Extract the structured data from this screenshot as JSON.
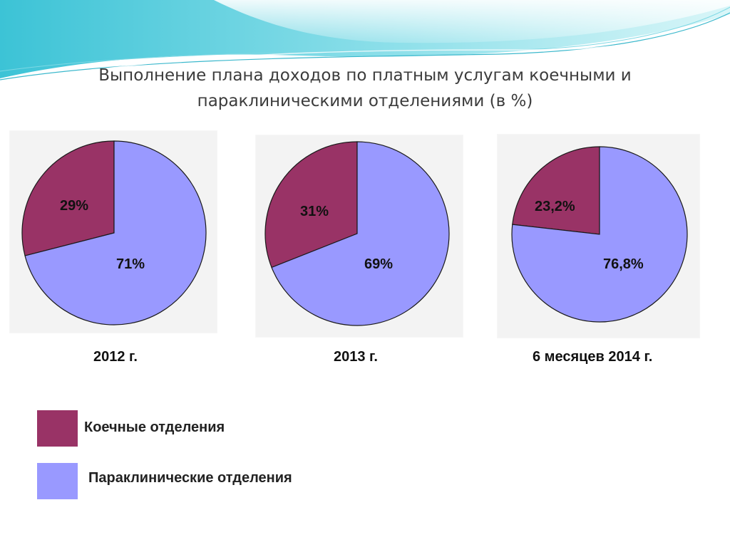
{
  "slide": {
    "title_line1": "Выполнение плана доходов по платным услугам коечными и",
    "title_line2": "параклиническими отделениями (в %)"
  },
  "colors": {
    "inpatient": "#993366",
    "paraclinical": "#9999ff",
    "outline": "#1a1a1a",
    "wave_primary": "#5fd0df",
    "wave_light": "#c9f1f4"
  },
  "legend": {
    "inpatient_label": "Коечные отделения",
    "paraclinical_label": "Параклинические отделения"
  },
  "chart_data": [
    {
      "type": "pie",
      "title": "2012 г.",
      "categories": [
        "Коечные отделения",
        "Параклинические отделения"
      ],
      "values": [
        29,
        71
      ],
      "labels": [
        "29%",
        "71%"
      ]
    },
    {
      "type": "pie",
      "title": "2013 г.",
      "categories": [
        "Коечные отделения",
        "Параклинические отделения"
      ],
      "values": [
        31,
        69
      ],
      "labels": [
        "31%",
        "69%"
      ]
    },
    {
      "type": "pie",
      "title": "6 месяцев 2014 г.",
      "categories": [
        "Коечные отделения",
        "Параклинические отделения"
      ],
      "values": [
        23.2,
        76.8
      ],
      "labels": [
        "23,2%",
        "76,8%"
      ]
    }
  ]
}
